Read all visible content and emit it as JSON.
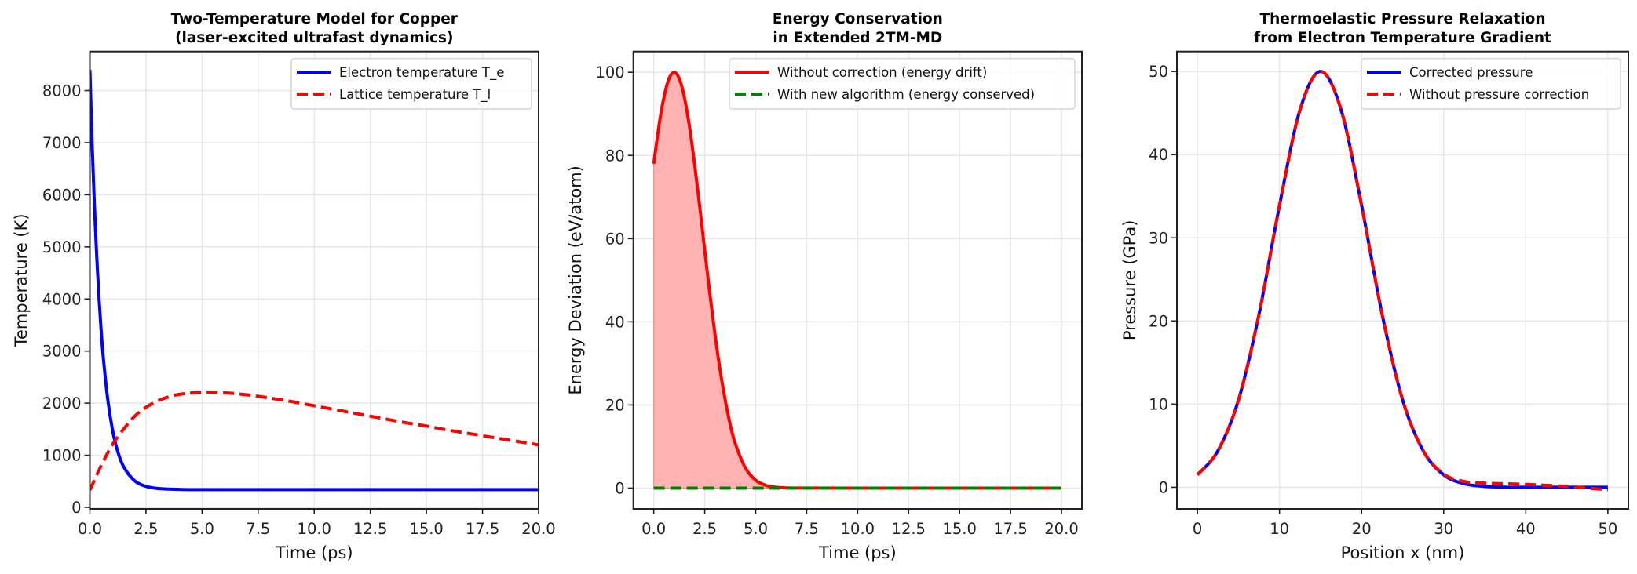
{
  "chart_data": [
    {
      "type": "line",
      "title": [
        "Two-Temperature Model for Copper",
        "(laser-excited ultrafast dynamics)"
      ],
      "xlabel": "Time (ps)",
      "ylabel": "Temperature (K)",
      "xlim": [
        0,
        20
      ],
      "ylim": [
        -30,
        8750
      ],
      "xticks": [
        0,
        2.5,
        5,
        7.5,
        10,
        12.5,
        15,
        17.5,
        20
      ],
      "xtick_labels": [
        "0.0",
        "2.5",
        "5.0",
        "7.5",
        "10.0",
        "12.5",
        "15.0",
        "17.5",
        "20.0"
      ],
      "yticks": [
        0,
        1000,
        2000,
        3000,
        4000,
        5000,
        6000,
        7000,
        8000
      ],
      "ytick_labels": [
        "0",
        "1000",
        "2000",
        "3000",
        "4000",
        "5000",
        "6000",
        "7000",
        "8000"
      ],
      "grid": true,
      "legend_position": "top-right",
      "series": [
        {
          "name": "Electron temperature T_e",
          "color": "#0000ff",
          "style": "solid",
          "x": [
            0,
            0.1,
            0.2,
            0.3,
            0.4,
            0.5,
            0.6,
            0.8,
            1.0,
            1.2,
            1.5,
            2.0,
            2.5,
            3.0,
            4.0,
            5.0,
            10,
            15,
            20
          ],
          "y": [
            8400,
            6982,
            5813,
            4854,
            4056,
            3403,
            2863,
            2057,
            1505,
            1131,
            783,
            508,
            404,
            364,
            344,
            340,
            340,
            340,
            340
          ]
        },
        {
          "name": "Lattice temperature T_l",
          "color": "#ff0000",
          "style": "dashed",
          "x": [
            0,
            0.5,
            1,
            1.5,
            2,
            2.5,
            3,
            3.5,
            4,
            5,
            6,
            7,
            8,
            9,
            10,
            11,
            12,
            13,
            14,
            15,
            16,
            17,
            18,
            19,
            20
          ],
          "y": [
            330,
            800,
            1200,
            1500,
            1750,
            1920,
            2040,
            2120,
            2170,
            2210,
            2200,
            2160,
            2100,
            2030,
            1950,
            1870,
            1790,
            1710,
            1630,
            1560,
            1480,
            1410,
            1340,
            1270,
            1200
          ]
        }
      ]
    },
    {
      "type": "line",
      "title": [
        "Energy Conservation",
        "in Extended 2TM-MD"
      ],
      "xlabel": "Time (ps)",
      "ylabel": "Energy Deviation (eV/atom)",
      "xlim": [
        -1,
        21
      ],
      "ylim": [
        -5,
        105
      ],
      "xticks": [
        0,
        2.5,
        5,
        7.5,
        10,
        12.5,
        15,
        17.5,
        20
      ],
      "xtick_labels": [
        "0.0",
        "2.5",
        "5.0",
        "7.5",
        "10.0",
        "12.5",
        "15.0",
        "17.5",
        "20.0"
      ],
      "yticks": [
        0,
        20,
        40,
        60,
        80,
        100
      ],
      "ytick_labels": [
        "0",
        "20",
        "40",
        "60",
        "80",
        "100"
      ],
      "grid": true,
      "legend_position": "top-right",
      "fill_under_series": 0,
      "fill_color": "#ffb3b3",
      "series": [
        {
          "name": "Without correction (energy drift)",
          "color": "#ff0000",
          "style": "solid",
          "x": [
            0,
            0.25,
            0.5,
            0.75,
            1,
            1.25,
            1.5,
            1.75,
            2,
            2.25,
            2.5,
            2.75,
            3,
            3.25,
            3.5,
            3.75,
            4,
            4.5,
            5,
            5.5,
            6,
            7,
            10,
            15,
            20
          ],
          "y": [
            78.0,
            87.0,
            94.0,
            98.5,
            100,
            98.5,
            94.0,
            87.0,
            78.0,
            67.9,
            57.2,
            46.8,
            37.1,
            28.5,
            21.3,
            15.3,
            10.7,
            4.8,
            1.9,
            0.66,
            0.2,
            0.01,
            0,
            0,
            0
          ]
        },
        {
          "name": "With new algorithm (energy conserved)",
          "color": "#008000",
          "style": "dashed",
          "x": [
            0,
            20
          ],
          "y": [
            0,
            0
          ]
        }
      ]
    },
    {
      "type": "line",
      "title": [
        "Thermoelastic Pressure Relaxation",
        "from Electron Temperature Gradient"
      ],
      "xlabel": "Position x (nm)",
      "ylabel": "Pressure (GPa)",
      "xlim": [
        -2.5,
        52.5
      ],
      "ylim": [
        -2.6,
        52.4
      ],
      "xticks": [
        0,
        10,
        20,
        30,
        40,
        50
      ],
      "xtick_labels": [
        "0",
        "10",
        "20",
        "30",
        "40",
        "50"
      ],
      "yticks": [
        0,
        10,
        20,
        30,
        40,
        50
      ],
      "ytick_labels": [
        "0",
        "10",
        "20",
        "30",
        "40",
        "50"
      ],
      "grid": true,
      "legend_position": "top-right",
      "series": [
        {
          "name": "Corrected pressure",
          "color": "#0000ff",
          "style": "solid",
          "x": [
            0,
            2.5,
            5,
            7.5,
            10,
            12.5,
            15,
            17.5,
            20,
            22.5,
            25,
            27.5,
            30,
            32.5,
            35,
            37.5,
            40,
            45,
            50
          ],
          "y": [
            1.5,
            4.4,
            10.5,
            20.8,
            33.9,
            45.4,
            50,
            45.4,
            33.9,
            20.8,
            10.5,
            4.4,
            1.5,
            0.43,
            0.1,
            0.02,
            0,
            0,
            0
          ]
        },
        {
          "name": "Without pressure correction",
          "color": "#ff0000",
          "style": "dashed",
          "x": [
            0,
            2.5,
            5,
            7.5,
            10,
            12.5,
            15,
            17.5,
            20,
            22.5,
            25,
            27.5,
            30,
            32.5,
            35,
            40,
            45,
            50
          ],
          "y": [
            1.5,
            4.4,
            10.5,
            20.8,
            33.9,
            45.4,
            50,
            45.4,
            33.9,
            20.8,
            10.5,
            4.4,
            1.6,
            0.7,
            0.5,
            0.35,
            0.1,
            -0.3
          ]
        }
      ]
    }
  ]
}
